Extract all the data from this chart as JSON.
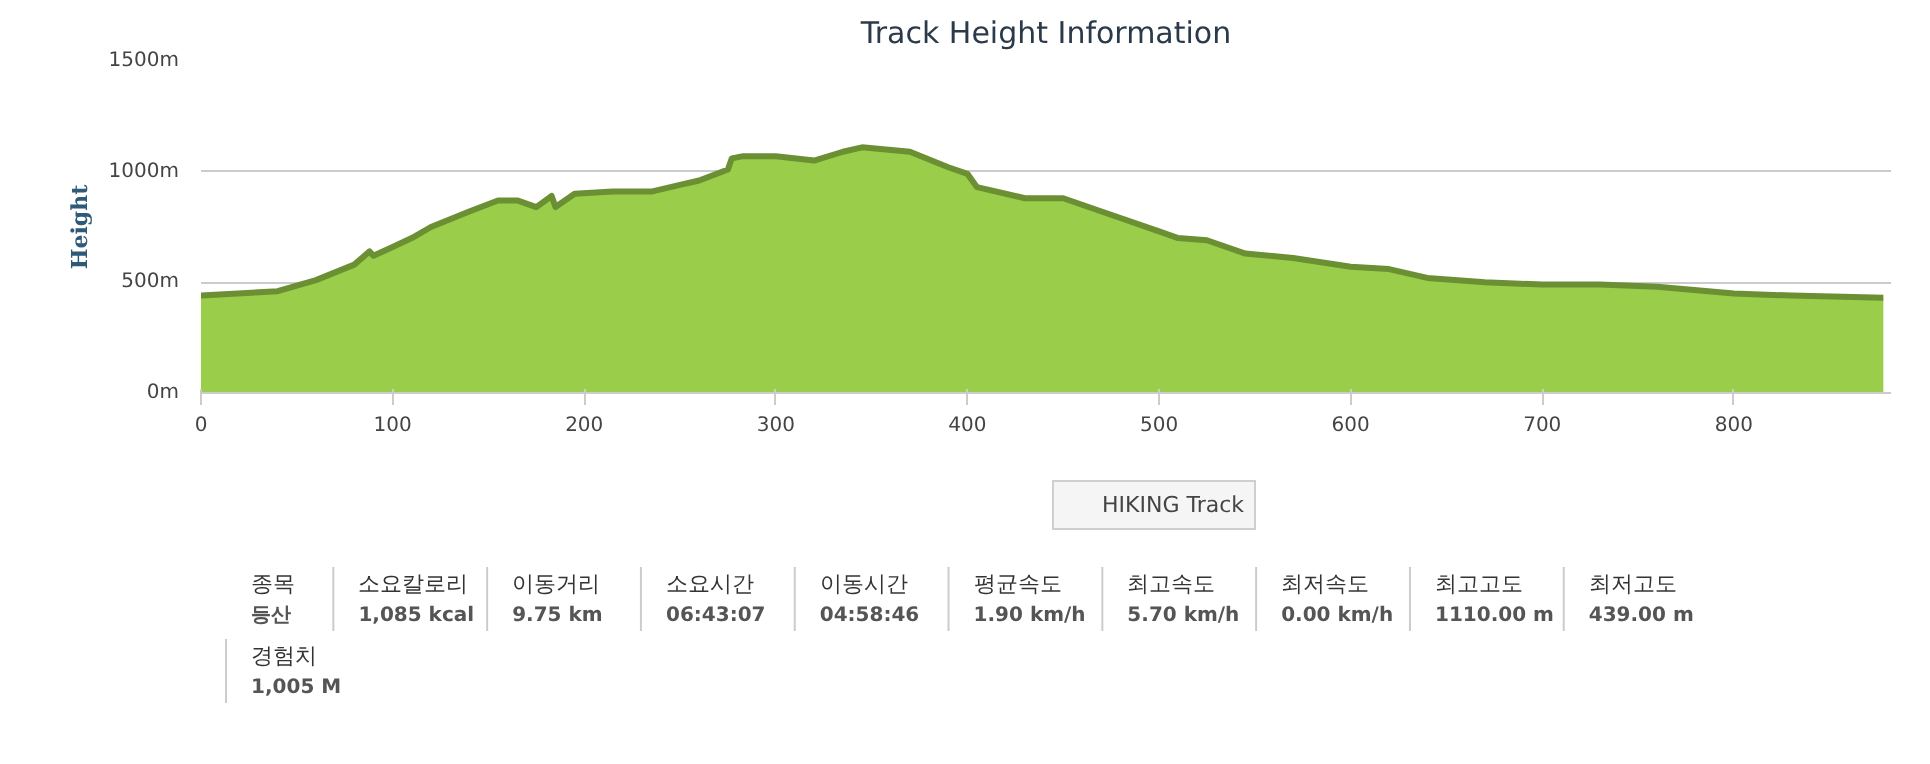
{
  "chart_data": {
    "type": "area",
    "title": "Track Height Information",
    "ylabel": "Height",
    "x": [
      0,
      40,
      60,
      80,
      88,
      90,
      100,
      110,
      120,
      140,
      155,
      165,
      175,
      183,
      185,
      195,
      215,
      235,
      250,
      260,
      275,
      277,
      283,
      300,
      320,
      335,
      345,
      370,
      390,
      400,
      405,
      430,
      450,
      470,
      500,
      510,
      525,
      545,
      570,
      600,
      620,
      640,
      670,
      700,
      730,
      760,
      800,
      830,
      878
    ],
    "series": [
      {
        "name": "HIKING Track",
        "color": "#9acd4a",
        "values": [
          440,
          460,
          510,
          580,
          640,
          620,
          660,
          700,
          750,
          820,
          870,
          870,
          840,
          890,
          840,
          900,
          910,
          910,
          940,
          960,
          1010,
          1060,
          1070,
          1070,
          1050,
          1090,
          1110,
          1090,
          1020,
          990,
          930,
          880,
          880,
          820,
          730,
          700,
          690,
          630,
          610,
          570,
          560,
          520,
          500,
          490,
          490,
          480,
          450,
          440,
          430
        ]
      }
    ],
    "xlim": [
      0,
      882
    ],
    "xticks": [
      0,
      100,
      200,
      300,
      400,
      500,
      600,
      700,
      800
    ],
    "ylim": [
      0,
      1500
    ],
    "yticks": [
      {
        "value": 0,
        "label": "0m"
      },
      {
        "value": 500,
        "label": "500m"
      },
      {
        "value": 1000,
        "label": "1000m"
      },
      {
        "value": 1500,
        "label": "1500m"
      }
    ],
    "grid": "y",
    "legend": "bottom",
    "annotations": [
      "종목",
      "등산",
      "소요칼로리",
      "1,085 kcal",
      "이동거리",
      "9.75 km",
      "소요시간",
      "06:43:07",
      "이동시간",
      "04:58:46",
      "평균속도",
      "1.90 km/h",
      "최고속도",
      "5.70 km/h",
      "최저속도",
      "0.00 km/h",
      "최고고도",
      "1110.00 m",
      "최저고도",
      "439.00 m",
      "경험치",
      "1,005 M"
    ]
  }
}
